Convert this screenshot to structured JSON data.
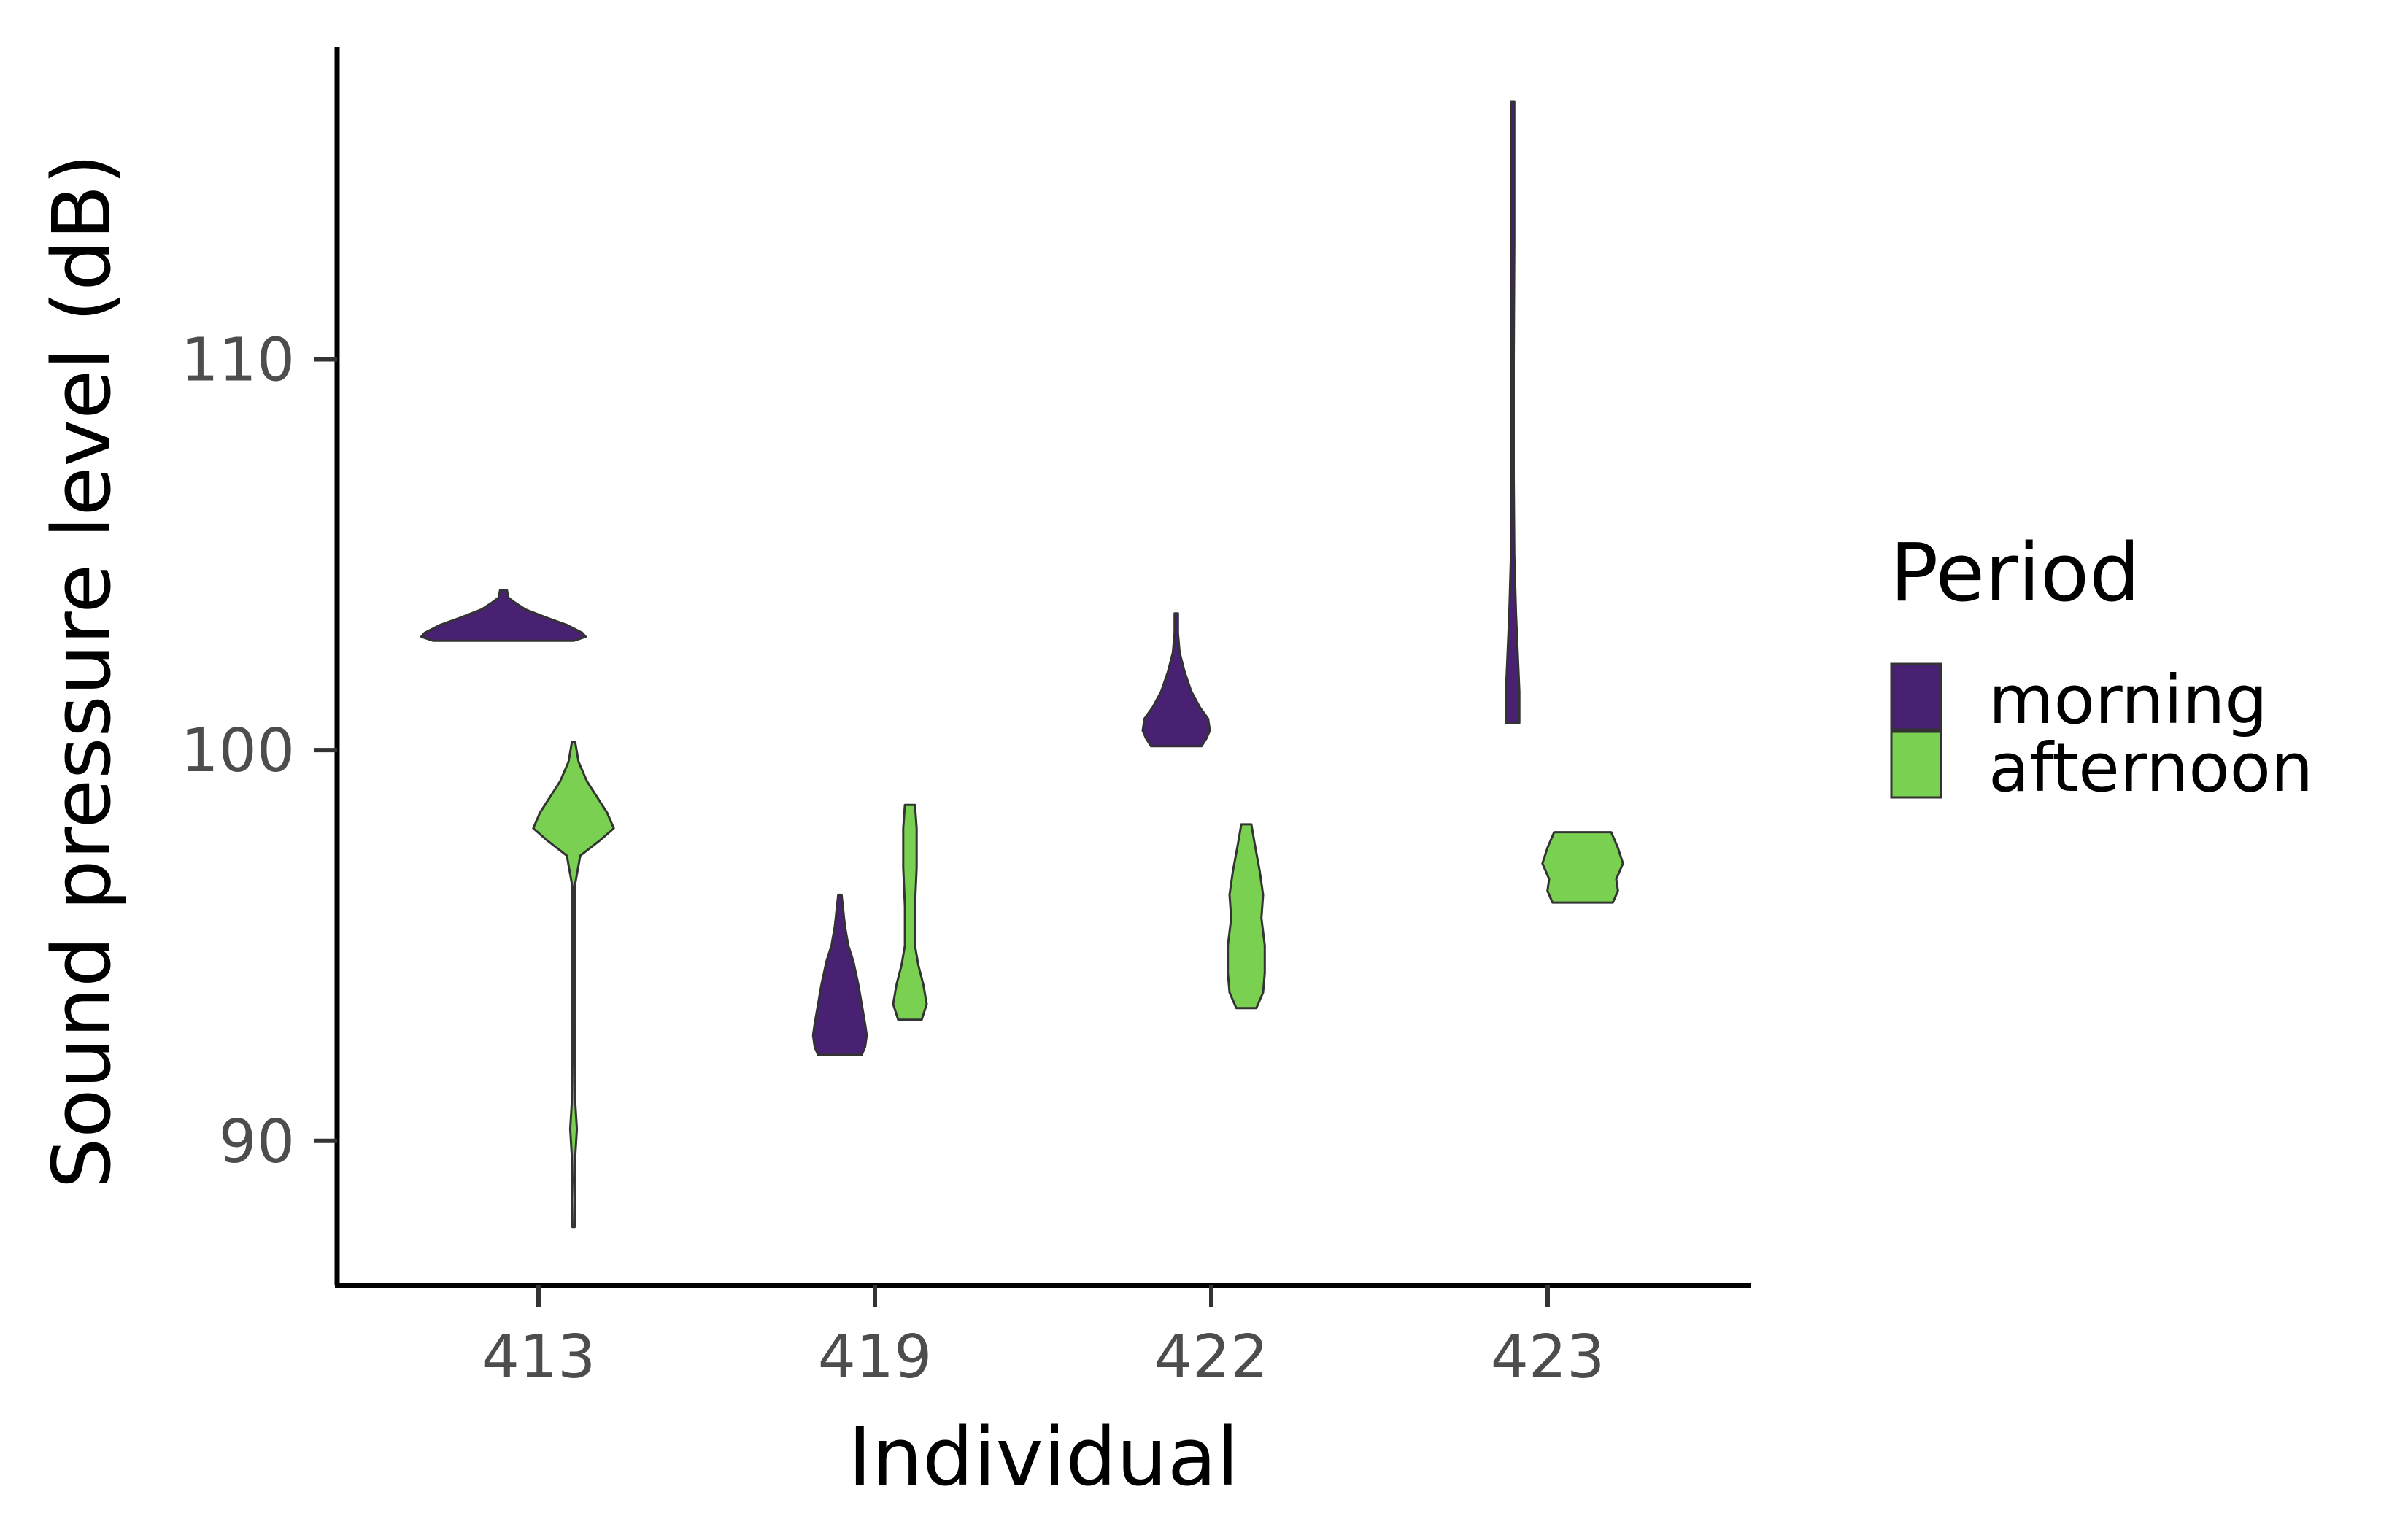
{
  "chart_data": {
    "type": "violin",
    "xlabel": "Individual",
    "ylabel": "Sound pressure level (dB)",
    "categories": [
      "413",
      "419",
      "422",
      "423"
    ],
    "yticks": [
      90,
      100,
      110
    ],
    "ylim": [
      86.3,
      118.0
    ],
    "grid": false,
    "legend": {
      "title": "Period",
      "placement": "right",
      "entries": [
        {
          "label": "morning",
          "color": "#482173"
        },
        {
          "label": "afternoon",
          "color": "#7ad151"
        }
      ]
    },
    "series": [
      {
        "name": "morning",
        "color": "#482173",
        "violins": [
          {
            "category": "413",
            "profile": [
              [
                102.8,
                0.42
              ],
              [
                102.9,
                0.49
              ],
              [
                103.0,
                0.47
              ],
              [
                103.2,
                0.38
              ],
              [
                103.4,
                0.25
              ],
              [
                103.6,
                0.13
              ],
              [
                103.8,
                0.06
              ],
              [
                103.9,
                0.03
              ],
              [
                104.1,
                0.02
              ]
            ]
          },
          {
            "category": "419",
            "profile": [
              [
                92.2,
                0.13
              ],
              [
                92.4,
                0.15
              ],
              [
                92.7,
                0.16
              ],
              [
                93.0,
                0.15
              ],
              [
                93.5,
                0.13
              ],
              [
                94.0,
                0.11
              ],
              [
                94.6,
                0.08
              ],
              [
                95.0,
                0.05
              ],
              [
                95.5,
                0.03
              ],
              [
                96.3,
                0.01
              ]
            ]
          },
          {
            "category": "422",
            "profile": [
              [
                100.1,
                0.15
              ],
              [
                100.3,
                0.18
              ],
              [
                100.5,
                0.2
              ],
              [
                100.8,
                0.19
              ],
              [
                101.1,
                0.14
              ],
              [
                101.5,
                0.09
              ],
              [
                102.0,
                0.05
              ],
              [
                102.5,
                0.02
              ],
              [
                103.0,
                0.01
              ],
              [
                103.5,
                0.01
              ]
            ]
          },
          {
            "category": "423",
            "profile": [
              [
                100.7,
                0.04
              ],
              [
                101.5,
                0.04
              ],
              [
                102.5,
                0.03
              ],
              [
                103.5,
                0.02
              ],
              [
                105.0,
                0.01
              ],
              [
                107.0,
                0.005
              ],
              [
                110.0,
                0.005
              ],
              [
                113.0,
                0.01
              ],
              [
                115.5,
                0.01
              ],
              [
                116.6,
                0.01
              ]
            ]
          }
        ]
      },
      {
        "name": "afternoon",
        "color": "#7ad151",
        "violins": [
          {
            "category": "413",
            "profile": [
              [
                87.8,
                0.005
              ],
              [
                88.5,
                0.01
              ],
              [
                89.0,
                0.005
              ],
              [
                89.6,
                0.01
              ],
              [
                90.3,
                0.02
              ],
              [
                91.0,
                0.01
              ],
              [
                92.0,
                0.005
              ],
              [
                94.0,
                0.005
              ],
              [
                96.5,
                0.005
              ],
              [
                97.3,
                0.04
              ],
              [
                97.7,
                0.16
              ],
              [
                98.0,
                0.24
              ],
              [
                98.4,
                0.2
              ],
              [
                98.8,
                0.14
              ],
              [
                99.2,
                0.08
              ],
              [
                99.7,
                0.03
              ],
              [
                100.2,
                0.01
              ]
            ]
          },
          {
            "category": "419",
            "profile": [
              [
                93.1,
                0.07
              ],
              [
                93.5,
                0.1
              ],
              [
                94.0,
                0.08
              ],
              [
                94.5,
                0.05
              ],
              [
                95.0,
                0.03
              ],
              [
                96.0,
                0.03
              ],
              [
                97.0,
                0.04
              ],
              [
                98.0,
                0.04
              ],
              [
                98.6,
                0.03
              ]
            ]
          },
          {
            "category": "422",
            "profile": [
              [
                93.4,
                0.06
              ],
              [
                93.8,
                0.1
              ],
              [
                94.3,
                0.11
              ],
              [
                95.0,
                0.11
              ],
              [
                95.7,
                0.09
              ],
              [
                96.3,
                0.1
              ],
              [
                96.9,
                0.08
              ],
              [
                97.6,
                0.05
              ],
              [
                98.1,
                0.03
              ]
            ]
          },
          {
            "category": "423",
            "profile": [
              [
                96.1,
                0.18
              ],
              [
                96.4,
                0.21
              ],
              [
                96.7,
                0.2
              ],
              [
                97.1,
                0.24
              ],
              [
                97.5,
                0.21
              ],
              [
                97.9,
                0.17
              ]
            ]
          }
        ]
      }
    ]
  }
}
